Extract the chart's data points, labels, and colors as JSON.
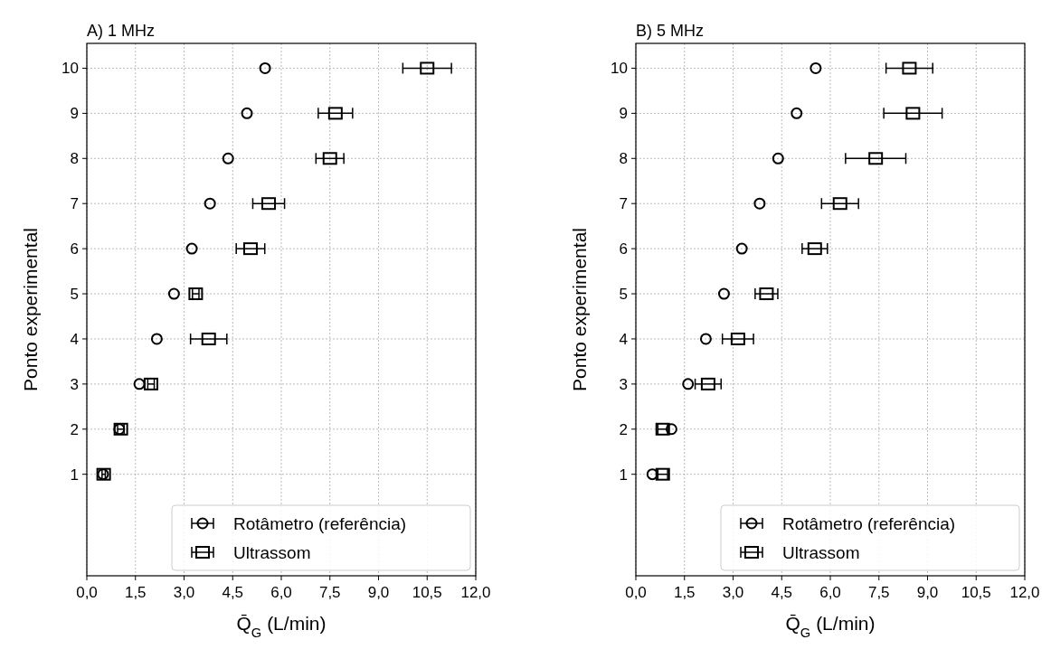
{
  "chart_data": [
    {
      "type": "scatter",
      "title": "A) 1 MHz",
      "xlabel": "Q̄$_{G}$ (L/min)",
      "ylabel": "Ponto experimental",
      "xlim": [
        0,
        12
      ],
      "xticks": [
        {
          "value": 0,
          "label": "0,0"
        },
        {
          "value": 1.5,
          "label": "1,5"
        },
        {
          "value": 3,
          "label": "3,0"
        },
        {
          "value": 4.5,
          "label": "4,5"
        },
        {
          "value": 6,
          "label": "6,0"
        },
        {
          "value": 7.5,
          "label": "7,5"
        },
        {
          "value": 9,
          "label": "9,0"
        },
        {
          "value": 10.5,
          "label": "10,5"
        },
        {
          "value": 12,
          "label": "12,0"
        }
      ],
      "ylim": [
        -1.25,
        10.55
      ],
      "yticks": [
        1,
        2,
        3,
        4,
        5,
        6,
        7,
        8,
        9,
        10
      ],
      "grid": true,
      "legend": "bottom right",
      "series": [
        {
          "name": "Rotâmetro (referência)",
          "color": "#000000",
          "marker": "circle",
          "x": [
            0.5,
            1.0,
            1.62,
            2.16,
            2.69,
            3.24,
            3.8,
            4.36,
            4.94,
            5.5
          ],
          "values": [
            1,
            2,
            3,
            4,
            5,
            6,
            7,
            8,
            9,
            10
          ]
        },
        {
          "name": "Ultrassom",
          "color": "#000000",
          "marker": "square",
          "x": [
            0.52,
            1.05,
            1.98,
            3.76,
            3.36,
            5.05,
            5.61,
            7.5,
            7.67,
            10.5
          ],
          "values": [
            1,
            2,
            3,
            4,
            5,
            6,
            7,
            8,
            9,
            10
          ],
          "xerrors": [
            0.05,
            0.1,
            0.1,
            0.56,
            0.1,
            0.44,
            0.49,
            0.43,
            0.53,
            0.75
          ]
        }
      ]
    },
    {
      "type": "scatter",
      "title": "B) 5 MHz",
      "xlabel": "Q̄$_{G}$ (L/min)",
      "ylabel": "Ponto experimental",
      "xlim": [
        0,
        12
      ],
      "xticks": [
        {
          "value": 0,
          "label": "0,0"
        },
        {
          "value": 1.5,
          "label": "1,5"
        },
        {
          "value": 3,
          "label": "3,0"
        },
        {
          "value": 4.5,
          "label": "4,5"
        },
        {
          "value": 6,
          "label": "6,0"
        },
        {
          "value": 7.5,
          "label": "7,5"
        },
        {
          "value": 9,
          "label": "9,0"
        },
        {
          "value": 10.5,
          "label": "10,5"
        },
        {
          "value": 12,
          "label": "12,0"
        }
      ],
      "ylim": [
        -1.25,
        10.55
      ],
      "yticks": [
        1,
        2,
        3,
        4,
        5,
        6,
        7,
        8,
        9,
        10
      ],
      "grid": true,
      "legend": "bottom right",
      "series": [
        {
          "name": "Rotâmetro (referência)",
          "color": "#000000",
          "marker": "circle",
          "x": [
            0.51,
            1.1,
            1.61,
            2.16,
            2.72,
            3.27,
            3.82,
            4.39,
            4.96,
            5.55
          ],
          "values": [
            1,
            2,
            3,
            4,
            5,
            6,
            7,
            8,
            9,
            10
          ]
        },
        {
          "name": "Ultrassom",
          "color": "#000000",
          "marker": "square",
          "x": [
            0.83,
            0.83,
            2.23,
            3.15,
            4.03,
            5.52,
            6.3,
            7.4,
            8.55,
            8.44
          ],
          "values": [
            1,
            2,
            3,
            4,
            5,
            6,
            7,
            8,
            9,
            10
          ],
          "xerrors": [
            0.15,
            0.15,
            0.4,
            0.48,
            0.35,
            0.39,
            0.57,
            0.93,
            0.9,
            0.72
          ]
        }
      ]
    }
  ]
}
